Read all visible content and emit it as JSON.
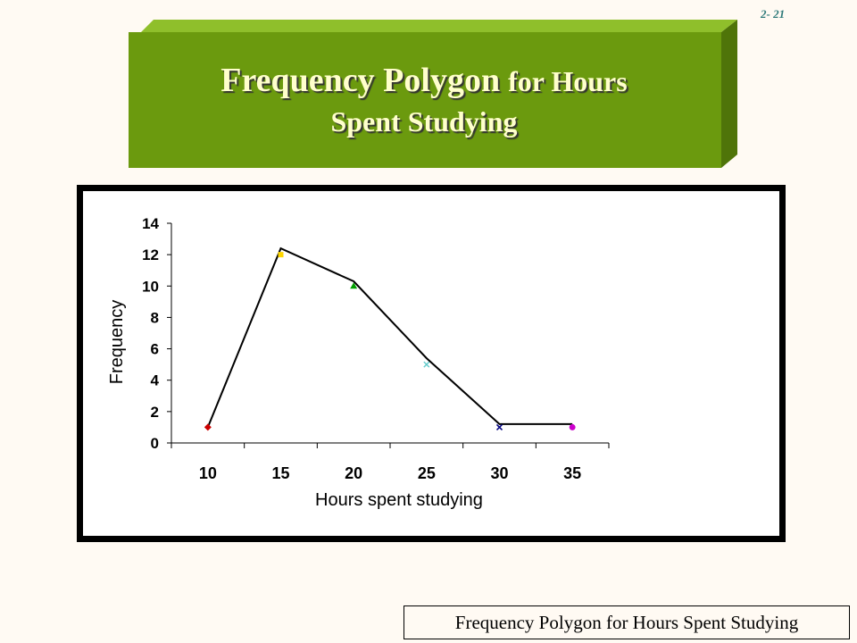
{
  "slide": {
    "number": "2- 21"
  },
  "title": {
    "line1_big": "Frequency Polygon",
    "line1_small": "for Hours",
    "line2": "Spent Studying"
  },
  "caption": "Frequency Polygon for Hours Spent Studying",
  "colors": {
    "banner": "#6b9a0e",
    "banner_edge": "#8fbf2b",
    "banner_dark": "#4f7409",
    "title_text": "#ffffcc"
  },
  "chart_data": {
    "type": "line",
    "title": "",
    "xlabel": "Hours spent studying",
    "ylabel": "Frequency",
    "categories": [
      "10",
      "15",
      "20",
      "25",
      "30",
      "35"
    ],
    "ylim": [
      0,
      14
    ],
    "yticks": [
      0,
      2,
      4,
      6,
      8,
      10,
      12,
      14
    ],
    "polygon_line": [
      {
        "x": 10,
        "y": 1
      },
      {
        "x": 15,
        "y": 12.4
      },
      {
        "x": 20,
        "y": 10.3
      },
      {
        "x": 25,
        "y": 5.4
      },
      {
        "x": 30,
        "y": 1.2
      },
      {
        "x": 35,
        "y": 1.2
      }
    ],
    "markers": [
      {
        "x": 10,
        "y": 1,
        "shape": "diamond",
        "color": "#cc0000"
      },
      {
        "x": 15,
        "y": 12,
        "shape": "square",
        "color": "#ffd700"
      },
      {
        "x": 20,
        "y": 10,
        "shape": "triangle",
        "color": "#00a000"
      },
      {
        "x": 25,
        "y": 5,
        "shape": "x",
        "color": "#66cccc"
      },
      {
        "x": 30,
        "y": 1,
        "shape": "x",
        "color": "#000080"
      },
      {
        "x": 35,
        "y": 1,
        "shape": "circle",
        "color": "#cc00cc"
      }
    ],
    "grid": false,
    "legend": "none"
  }
}
